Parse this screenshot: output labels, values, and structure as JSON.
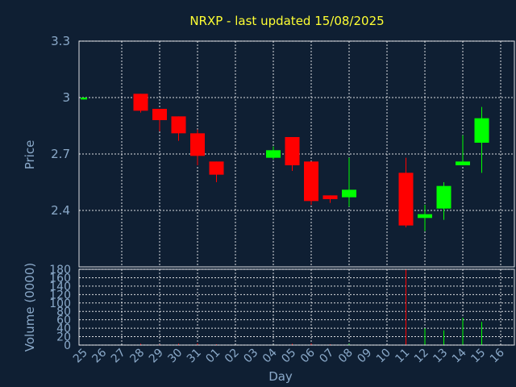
{
  "chart_data": {
    "type": "candlestick",
    "title": "NRXP - last updated 15/08/2025",
    "ylabel": "Price",
    "vol_label": "Volume (0000)",
    "xlabel": "Day",
    "ylim": [
      2.1,
      3.3
    ],
    "yticks": [
      "3.3",
      "3",
      "2.7",
      "2.4"
    ],
    "yticks_values": [
      3.3,
      3.0,
      2.7,
      2.4
    ],
    "vol_lim": [
      0,
      180
    ],
    "vol_ticks": [
      "180",
      "160",
      "140",
      "120",
      "100",
      "80",
      "60",
      "40",
      "20",
      "0"
    ],
    "vol_ticks_values": [
      180,
      160,
      140,
      120,
      100,
      80,
      60,
      40,
      20,
      0
    ],
    "days": [
      "25",
      "26",
      "27",
      "28",
      "29",
      "30",
      "31",
      "01",
      "02",
      "03",
      "04",
      "05",
      "06",
      "07",
      "08",
      "09",
      "10",
      "11",
      "12",
      "13",
      "14",
      "15",
      "16"
    ],
    "candles": [
      {
        "day": "25",
        "open": 2.99,
        "high": 3.0,
        "low": 2.99,
        "close": 3.0,
        "volume": 0
      },
      {
        "day": "28",
        "open": 3.02,
        "high": 3.02,
        "low": 2.92,
        "close": 2.93,
        "volume": 3
      },
      {
        "day": "29",
        "open": 2.94,
        "high": 2.94,
        "low": 2.82,
        "close": 2.88,
        "volume": 2
      },
      {
        "day": "30",
        "open": 2.9,
        "high": 2.9,
        "low": 2.77,
        "close": 2.81,
        "volume": 3
      },
      {
        "day": "31",
        "open": 2.81,
        "high": 2.83,
        "low": 2.64,
        "close": 2.69,
        "volume": 4
      },
      {
        "day": "01",
        "open": 2.66,
        "high": 2.66,
        "low": 2.55,
        "close": 2.59,
        "volume": 2
      },
      {
        "day": "04",
        "open": 2.68,
        "high": 2.74,
        "low": 2.67,
        "close": 2.72,
        "volume": 1
      },
      {
        "day": "05",
        "open": 2.79,
        "high": 2.79,
        "low": 2.61,
        "close": 2.64,
        "volume": 3
      },
      {
        "day": "06",
        "open": 2.66,
        "high": 2.66,
        "low": 2.43,
        "close": 2.45,
        "volume": 4
      },
      {
        "day": "07",
        "open": 2.48,
        "high": 2.48,
        "low": 2.44,
        "close": 2.46,
        "volume": 2
      },
      {
        "day": "08",
        "open": 2.47,
        "high": 2.68,
        "low": 2.42,
        "close": 2.51,
        "volume": 3
      },
      {
        "day": "11",
        "open": 2.6,
        "high": 2.68,
        "low": 2.31,
        "close": 2.32,
        "volume": 180
      },
      {
        "day": "12",
        "open": 2.36,
        "high": 2.43,
        "low": 2.29,
        "close": 2.38,
        "volume": 40
      },
      {
        "day": "13",
        "open": 2.41,
        "high": 2.55,
        "low": 2.35,
        "close": 2.53,
        "volume": 35
      },
      {
        "day": "14",
        "open": 2.64,
        "high": 2.8,
        "low": 2.64,
        "close": 2.66,
        "volume": 65
      },
      {
        "day": "15",
        "open": 2.76,
        "high": 2.95,
        "low": 2.6,
        "close": 2.89,
        "volume": 55
      }
    ],
    "colors": {
      "up": "#00ff00",
      "down": "#ff0000",
      "title": "#ffff33",
      "text": "#8aa9c9",
      "background": "#0f1f33"
    }
  }
}
